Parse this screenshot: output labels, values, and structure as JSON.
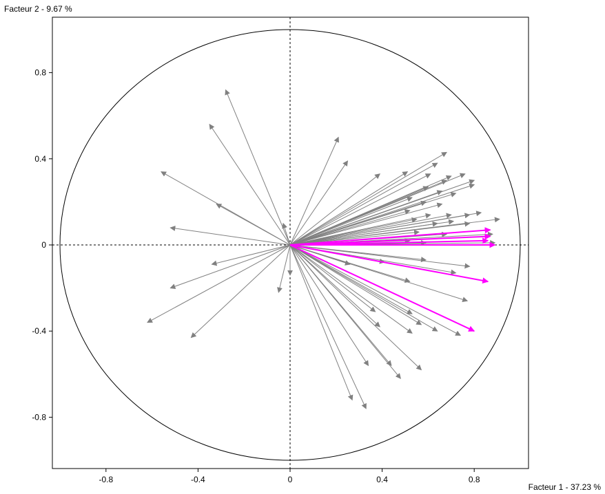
{
  "chart_data": {
    "type": "scatter",
    "subtype": "correlation-circle",
    "title": "",
    "xlabel": "Facteur 1  -  37.23 %",
    "ylabel": "Facteur 2  -  9.67 %",
    "xlim": [
      -1.03,
      1.04
    ],
    "ylim": [
      -1.03,
      1.04
    ],
    "x_ticks": [
      -0.8,
      -0.4,
      0,
      0.4,
      0.8
    ],
    "y_ticks": [
      0.8,
      0.4,
      0,
      -0.4,
      -0.8
    ],
    "x_tick_labels": [
      "-0.8",
      "-0.4",
      "0",
      "0.4",
      "0.8"
    ],
    "y_tick_labels": [
      "0.8",
      "0.4",
      "0",
      "-0.4",
      "-0.8"
    ],
    "unit_circle": true,
    "reference_lines": "dashed at x=0 and y=0",
    "colors": {
      "vectors": "#808080",
      "highlight": "#ff00ff",
      "frame": "#000000"
    },
    "series": [
      {
        "name": "",
        "color": "#808080",
        "vectors": [
          [
            -0.28,
            0.72
          ],
          [
            -0.35,
            0.56
          ],
          [
            -0.56,
            0.34
          ],
          [
            -0.32,
            0.19
          ],
          [
            -0.52,
            0.08
          ],
          [
            -0.03,
            0.1
          ],
          [
            -0.34,
            -0.09
          ],
          [
            -0.52,
            -0.2
          ],
          [
            -0.62,
            -0.36
          ],
          [
            -0.43,
            -0.43
          ],
          [
            -0.05,
            -0.22
          ],
          [
            0.0,
            -0.14
          ],
          [
            0.21,
            0.5
          ],
          [
            0.25,
            0.39
          ],
          [
            0.39,
            0.33
          ],
          [
            0.51,
            0.34
          ],
          [
            0.61,
            0.33
          ],
          [
            0.68,
            0.43
          ],
          [
            0.64,
            0.38
          ],
          [
            0.7,
            0.32
          ],
          [
            0.76,
            0.33
          ],
          [
            0.68,
            0.3
          ],
          [
            0.6,
            0.27
          ],
          [
            0.8,
            0.3
          ],
          [
            0.8,
            0.28
          ],
          [
            0.66,
            0.25
          ],
          [
            0.72,
            0.24
          ],
          [
            0.53,
            0.22
          ],
          [
            0.59,
            0.2
          ],
          [
            0.66,
            0.19
          ],
          [
            0.52,
            0.16
          ],
          [
            0.61,
            0.14
          ],
          [
            0.7,
            0.14
          ],
          [
            0.78,
            0.14
          ],
          [
            0.83,
            0.15
          ],
          [
            0.91,
            0.12
          ],
          [
            0.71,
            0.11
          ],
          [
            0.55,
            0.12
          ],
          [
            0.64,
            0.1
          ],
          [
            0.78,
            0.1
          ],
          [
            0.56,
            0.06
          ],
          [
            0.68,
            0.05
          ],
          [
            0.88,
            0.05
          ],
          [
            0.52,
            0.02
          ],
          [
            0.59,
            0.01
          ],
          [
            0.89,
            0.01
          ],
          [
            0.26,
            -0.09
          ],
          [
            0.41,
            -0.08
          ],
          [
            0.59,
            -0.07
          ],
          [
            0.78,
            -0.1
          ],
          [
            0.72,
            -0.13
          ],
          [
            0.52,
            -0.17
          ],
          [
            0.77,
            -0.26
          ],
          [
            0.37,
            -0.31
          ],
          [
            0.53,
            -0.32
          ],
          [
            0.57,
            -0.37
          ],
          [
            0.39,
            -0.38
          ],
          [
            0.64,
            -0.4
          ],
          [
            0.74,
            -0.42
          ],
          [
            0.53,
            -0.41
          ],
          [
            0.44,
            -0.56
          ],
          [
            0.48,
            -0.62
          ],
          [
            0.57,
            -0.58
          ],
          [
            0.34,
            -0.56
          ],
          [
            0.27,
            -0.72
          ],
          [
            0.33,
            -0.76
          ]
        ]
      },
      {
        "name": "",
        "color": "#ff00ff",
        "vectors": [
          [
            0.87,
            0.07
          ],
          [
            0.87,
            0.04
          ],
          [
            0.86,
            0.02
          ],
          [
            0.89,
            0.0
          ],
          [
            0.86,
            -0.17
          ],
          [
            0.8,
            -0.4
          ]
        ]
      }
    ]
  }
}
